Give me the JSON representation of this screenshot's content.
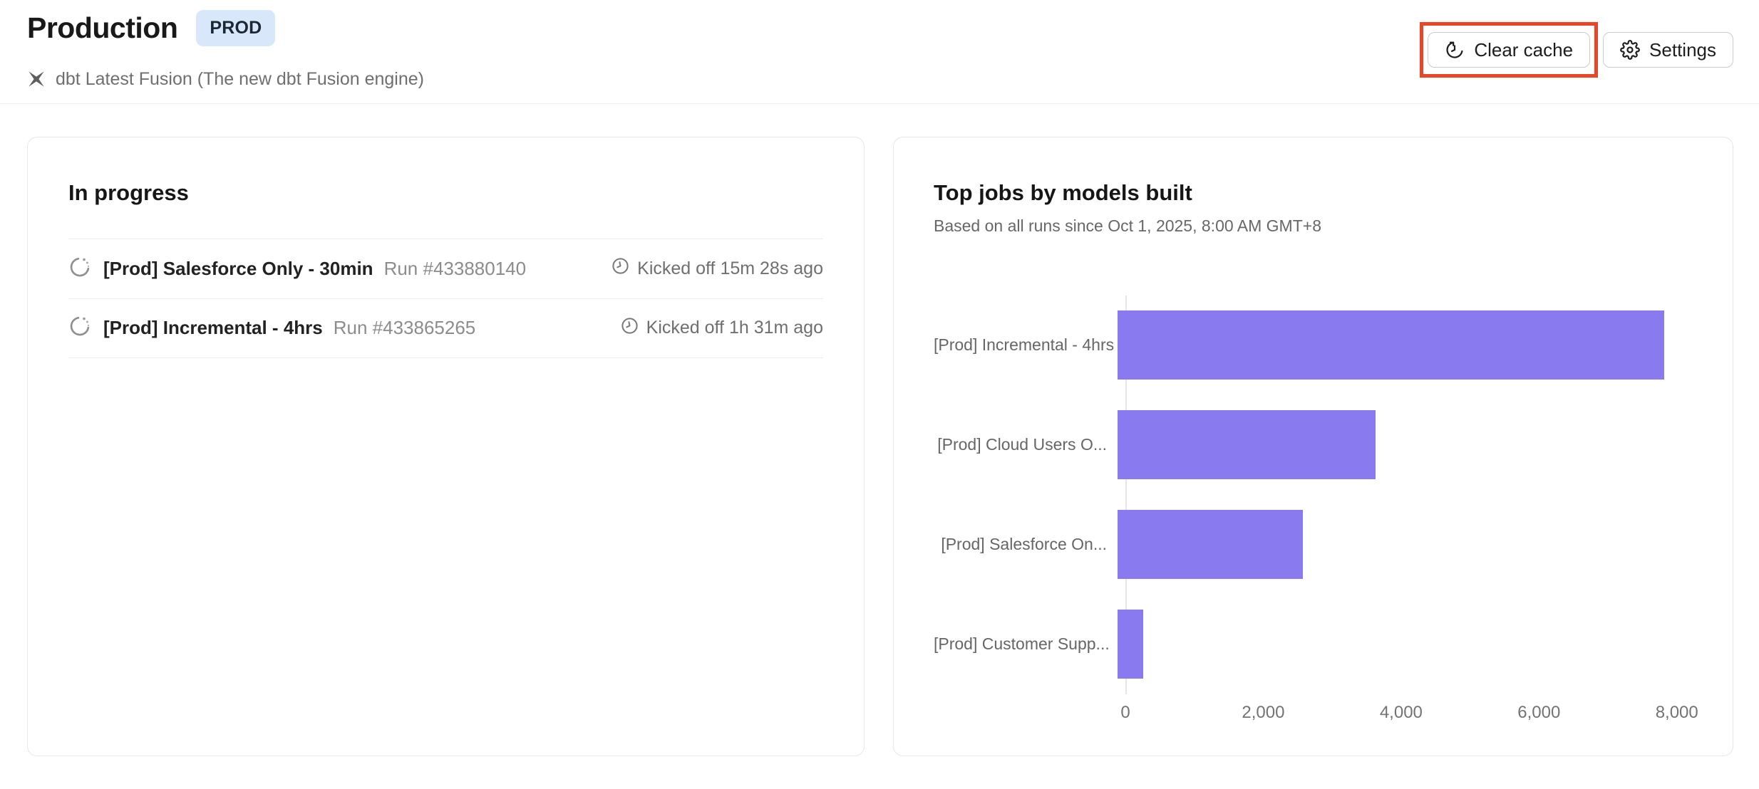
{
  "header": {
    "title": "Production",
    "badge": "PROD",
    "engine": "dbt Latest Fusion (The new dbt Fusion engine)",
    "clear_cache_label": "Clear cache",
    "settings_label": "Settings"
  },
  "icons": {
    "clear_cache": "restore-history-clock",
    "settings": "gear",
    "engine": "dbt-fusion-logo",
    "run_status": "loading-spinner",
    "kicked_off": "clock"
  },
  "in_progress": {
    "title": "In progress",
    "runs": [
      {
        "name": "[Prod] Salesforce Only - 30min",
        "run": "Run #433880140",
        "kicked_off": "Kicked off 15m 28s ago"
      },
      {
        "name": "[Prod] Incremental - 4hrs",
        "run": "Run #433865265",
        "kicked_off": "Kicked off 1h 31m ago"
      }
    ]
  },
  "chart_data": {
    "type": "bar",
    "orientation": "horizontal",
    "title": "Top jobs by models built",
    "subtitle": "Based on all runs since Oct 1, 2025, 8:00 AM GMT+8",
    "categories": [
      "[Prod] Incremental - 4hrs",
      "[Prod] Cloud Users O...",
      "[Prod] Salesforce On...",
      "[Prod] Customer Supp..."
    ],
    "values": [
      7800,
      3680,
      2640,
      370
    ],
    "xlabel": "",
    "ylabel": "",
    "xlim": [
      0,
      8220
    ],
    "xticks": [
      {
        "value": 0,
        "label": "0"
      },
      {
        "value": 2000,
        "label": "2,000"
      },
      {
        "value": 4000,
        "label": "4,000"
      },
      {
        "value": 6000,
        "label": "6,000"
      },
      {
        "value": 8000,
        "label": "8,000"
      }
    ],
    "grid": false,
    "legend": false,
    "bar_color": "#8a7af0"
  },
  "colors": {
    "bar": "#8a7af0",
    "annotation": "#eb4426",
    "badge_bg": "#d9e7fb",
    "badge_text": "#1b2733"
  }
}
